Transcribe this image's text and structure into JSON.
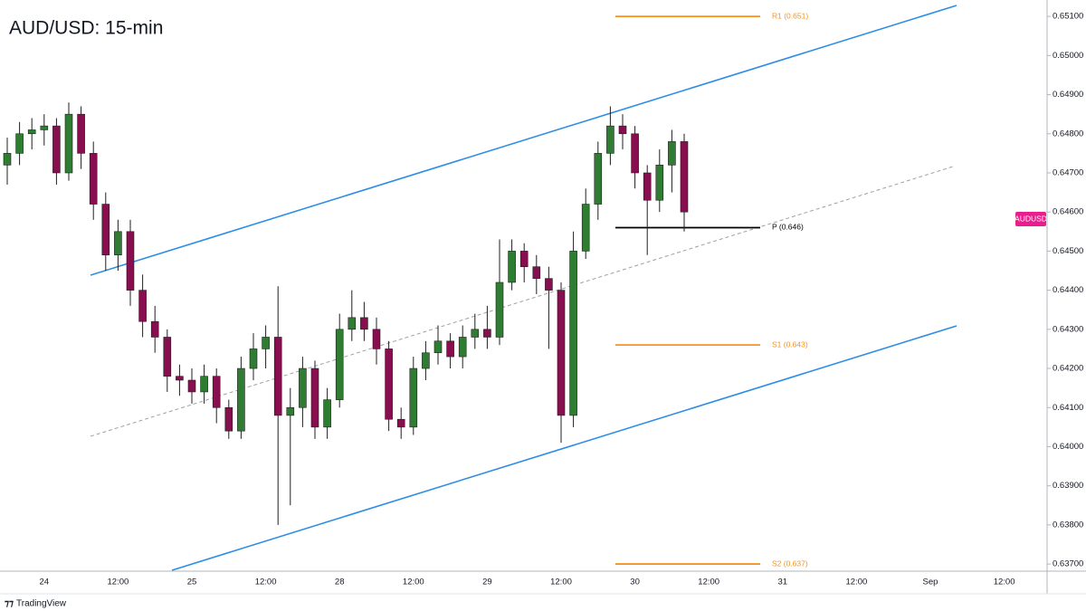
{
  "chart_data": {
    "type": "candlestick",
    "title": "AUD/USD: 15-min",
    "symbol_tag": "AUDUSD",
    "watermark": "TradingView",
    "up_color": "#2e7d32",
    "down_color": "#880e4f",
    "wick_color": "#1f1f1f",
    "categories": [
      null,
      null,
      null,
      "24",
      null,
      null,
      null,
      null,
      null,
      "12:00",
      null,
      null,
      null,
      null,
      null,
      "25",
      null,
      null,
      null,
      null,
      null,
      "12:00",
      null,
      null,
      null,
      null,
      null,
      "28",
      null,
      null,
      null,
      null,
      null,
      "12:00",
      null,
      null,
      null,
      null,
      null,
      "29",
      null,
      null,
      null,
      null,
      null,
      "12:00",
      null,
      null,
      null,
      null,
      null,
      "30",
      null,
      null,
      null,
      null,
      null,
      "12:00",
      null,
      null,
      null,
      null,
      null,
      "31",
      null,
      null,
      null,
      null,
      null,
      "12:00",
      null,
      null,
      null,
      null,
      null,
      "Sep",
      null,
      null,
      null,
      null,
      null,
      "12:00",
      null,
      null
    ],
    "open": [
      0.6472,
      0.6475,
      0.648,
      0.6481,
      0.6482,
      0.647,
      0.6485,
      0.6475,
      0.6462,
      0.6449,
      0.6455,
      0.644,
      0.6432,
      0.6428,
      0.6418,
      0.6417,
      0.6414,
      0.6418,
      0.641,
      0.6404,
      0.642,
      0.6425,
      0.6428,
      0.6408,
      0.641,
      0.642,
      0.6405,
      0.6412,
      0.643,
      0.6433,
      0.643,
      0.6425,
      0.6407,
      0.6405,
      0.642,
      0.6424,
      0.6427,
      0.6423,
      0.6428,
      0.643,
      0.6428,
      0.6442,
      0.645,
      0.6446,
      0.6443,
      0.644,
      0.6408,
      0.645,
      0.6462,
      0.6475,
      0.6482,
      0.648,
      0.647,
      0.6463,
      0.6472,
      0.6478,
      null,
      null,
      null,
      null,
      null,
      null,
      null,
      null,
      null,
      null,
      null,
      null,
      null,
      null,
      null,
      null,
      null,
      null,
      null,
      null,
      null,
      null,
      null,
      null,
      null,
      null,
      null,
      null
    ],
    "high": [
      0.6479,
      0.6483,
      0.6484,
      0.6485,
      0.6484,
      0.6488,
      0.6487,
      0.6478,
      0.6465,
      0.6458,
      0.6458,
      0.6444,
      0.6436,
      0.643,
      0.6421,
      0.642,
      0.6421,
      0.642,
      0.6412,
      0.6423,
      0.6429,
      0.6431,
      0.6441,
      0.6415,
      0.6423,
      0.6422,
      0.6415,
      0.6434,
      0.644,
      0.6437,
      0.6433,
      0.6427,
      0.641,
      0.6423,
      0.6427,
      0.6431,
      0.6429,
      0.6431,
      0.6434,
      0.6436,
      0.6453,
      0.6453,
      0.6452,
      0.6449,
      0.6446,
      0.6442,
      0.6455,
      0.6466,
      0.6478,
      0.6487,
      0.6485,
      0.6482,
      0.6472,
      0.6476,
      0.6481,
      0.648,
      null,
      null,
      null,
      null,
      null,
      null,
      null,
      null,
      null,
      null,
      null,
      null,
      null,
      null,
      null,
      null,
      null,
      null,
      null,
      null,
      null,
      null,
      null,
      null,
      null,
      null,
      null,
      null
    ],
    "low": [
      0.6467,
      0.6472,
      0.6476,
      0.6477,
      0.6467,
      0.6468,
      0.6471,
      0.6458,
      0.6445,
      0.6445,
      0.6436,
      0.6428,
      0.6424,
      0.6414,
      0.6413,
      0.6411,
      0.6411,
      0.6406,
      0.6402,
      0.6402,
      0.6417,
      0.642,
      0.638,
      0.6385,
      0.6405,
      0.6402,
      0.6402,
      0.641,
      0.6427,
      0.6427,
      0.6421,
      0.6404,
      0.6402,
      0.6403,
      0.6417,
      0.6421,
      0.642,
      0.642,
      0.6425,
      0.6425,
      0.6426,
      0.644,
      0.6442,
      0.6439,
      0.6425,
      0.6401,
      0.6405,
      0.6448,
      0.6458,
      0.6472,
      0.6476,
      0.6466,
      0.6449,
      0.646,
      0.6465,
      0.6455,
      null,
      null,
      null,
      null,
      null,
      null,
      null,
      null,
      null,
      null,
      null,
      null,
      null,
      null,
      null,
      null,
      null,
      null,
      null,
      null,
      null,
      null,
      null,
      null,
      null,
      null,
      null,
      null
    ],
    "close": [
      0.6475,
      0.648,
      0.6481,
      0.6482,
      0.647,
      0.6485,
      0.6475,
      0.6462,
      0.6449,
      0.6455,
      0.644,
      0.6432,
      0.6428,
      0.6418,
      0.6417,
      0.6414,
      0.6418,
      0.641,
      0.6404,
      0.642,
      0.6425,
      0.6428,
      0.6408,
      0.641,
      0.642,
      0.6405,
      0.6412,
      0.643,
      0.6433,
      0.643,
      0.6425,
      0.6407,
      0.6405,
      0.642,
      0.6424,
      0.6427,
      0.6423,
      0.6428,
      0.643,
      0.6428,
      0.6442,
      0.645,
      0.6446,
      0.6443,
      0.644,
      0.6408,
      0.645,
      0.6462,
      0.6475,
      0.6482,
      0.648,
      0.647,
      0.6463,
      0.6472,
      0.6478,
      0.646,
      null,
      null,
      null,
      null,
      null,
      null,
      null,
      null,
      null,
      null,
      null,
      null,
      null,
      null,
      null,
      null,
      null,
      null,
      null,
      null,
      null,
      null,
      null,
      null,
      null,
      null,
      null,
      null
    ],
    "levels": [
      {
        "label": "R1 (0.651)",
        "value": 0.651,
        "color": "#f7931a"
      },
      {
        "label": "P (0.646)",
        "value": 0.6456,
        "color": "#000000"
      },
      {
        "label": "S1 (0.643)",
        "value": 0.6426,
        "color": "#f7931a"
      },
      {
        "label": "S2 (0.637)",
        "value": 0.637,
        "color": "#f7931a"
      }
    ],
    "ylim": [
      0.63684,
      0.65142
    ],
    "yticks": [
      {
        "value": 0.637,
        "label": "0.63700"
      },
      {
        "value": 0.638,
        "label": "0.63800"
      },
      {
        "value": 0.639,
        "label": "0.63900"
      },
      {
        "value": 0.64,
        "label": "0.64000"
      },
      {
        "value": 0.641,
        "label": "0.64100"
      },
      {
        "value": 0.642,
        "label": "0.64200"
      },
      {
        "value": 0.643,
        "label": "0.64300"
      },
      {
        "value": 0.644,
        "label": "0.64400"
      },
      {
        "value": 0.645,
        "label": "0.64500"
      },
      {
        "value": 0.646,
        "label": "0.64600"
      },
      {
        "value": 0.647,
        "label": "0.64700"
      },
      {
        "value": 0.648,
        "label": "0.64800"
      },
      {
        "value": 0.649,
        "label": "0.64900"
      },
      {
        "value": 0.65,
        "label": "0.65000"
      },
      {
        "value": 0.651,
        "label": "0.65100"
      }
    ],
    "grid": false
  }
}
